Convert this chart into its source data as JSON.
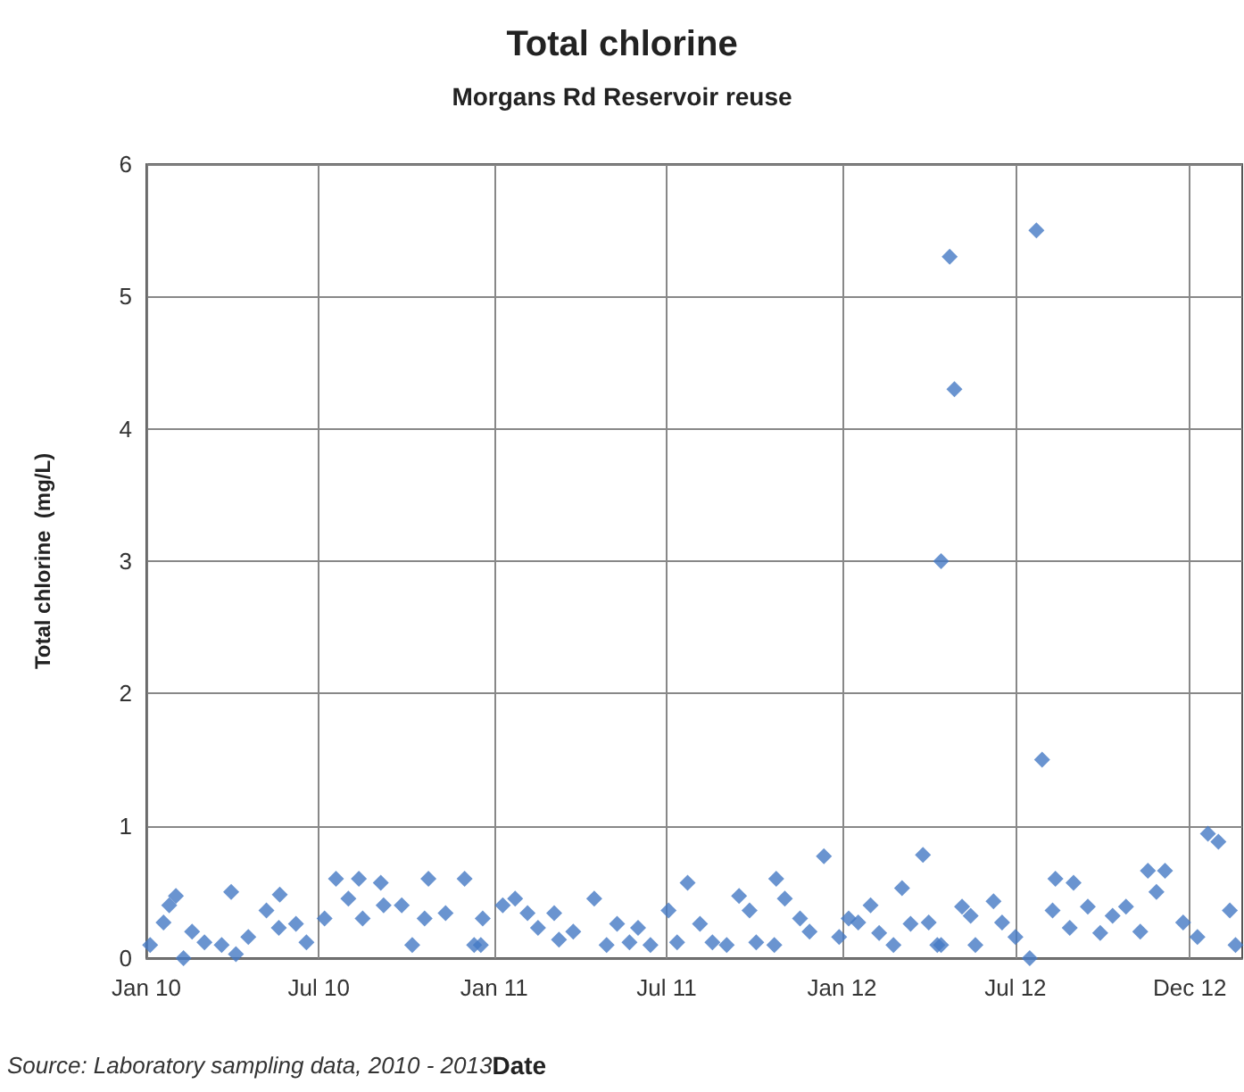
{
  "chart_data": {
    "type": "scatter",
    "title": "Total chlorine",
    "subtitle": "Morgans Rd Reservoir reuse",
    "xlabel": "Date",
    "ylabel": "Total chlorine  (mg/L)",
    "annotations": [
      "Source: Laboratory sampling data, 2010 - 2013"
    ],
    "x": [
      "2010-01-05",
      "2010-01-19",
      "2010-01-25",
      "2010-02-01",
      "2010-02-09",
      "2010-02-18",
      "2010-03-03",
      "2010-03-21",
      "2010-03-31",
      "2010-04-05",
      "2010-04-18",
      "2010-05-07",
      "2010-05-20",
      "2010-05-21",
      "2010-06-07",
      "2010-06-18",
      "2010-07-07",
      "2010-07-19",
      "2010-08-01",
      "2010-08-12",
      "2010-08-16",
      "2010-09-04",
      "2010-09-07",
      "2010-09-26",
      "2010-10-07",
      "2010-10-20",
      "2010-10-24",
      "2010-11-11",
      "2010-12-01",
      "2010-12-11",
      "2010-12-18",
      "2010-12-20",
      "2011-01-10",
      "2011-01-23",
      "2011-02-05",
      "2011-02-16",
      "2011-03-05",
      "2011-03-10",
      "2011-03-25",
      "2011-04-16",
      "2011-04-29",
      "2011-05-10",
      "2011-05-23",
      "2011-06-01",
      "2011-06-14",
      "2011-07-03",
      "2011-07-12",
      "2011-07-23",
      "2011-08-05",
      "2011-08-18",
      "2011-09-02",
      "2011-09-15",
      "2011-09-26",
      "2011-10-03",
      "2011-10-22",
      "2011-10-24",
      "2011-11-02",
      "2011-11-18",
      "2011-11-28",
      "2011-12-13",
      "2011-12-29",
      "2012-01-08",
      "2012-01-18",
      "2012-01-31",
      "2012-02-09",
      "2012-02-24",
      "2012-03-04",
      "2012-03-13",
      "2012-03-26",
      "2012-04-01",
      "2012-04-10",
      "2012-04-14",
      "2012-04-23",
      "2012-04-28",
      "2012-04-14",
      "2012-05-06",
      "2012-05-15",
      "2012-05-20",
      "2012-06-08",
      "2012-06-17",
      "2012-07-01",
      "2012-07-16",
      "2012-07-23",
      "2012-07-29",
      "2012-08-09",
      "2012-08-12",
      "2012-08-27",
      "2012-08-31",
      "2012-09-15",
      "2012-09-28",
      "2012-10-11",
      "2012-10-25",
      "2012-11-09",
      "2012-11-17",
      "2012-11-26",
      "2012-12-05",
      "2012-12-24",
      "2013-01-08",
      "2013-01-19",
      "2013-01-30",
      "2013-02-11",
      "2013-02-17"
    ],
    "values": [
      0.1,
      0.27,
      0.4,
      0.47,
      0.0,
      0.2,
      0.12,
      0.1,
      0.5,
      0.03,
      0.16,
      0.36,
      0.23,
      0.48,
      0.26,
      0.12,
      0.3,
      0.6,
      0.45,
      0.6,
      0.3,
      0.57,
      0.4,
      0.4,
      0.1,
      0.3,
      0.6,
      0.34,
      0.6,
      0.1,
      0.1,
      0.3,
      0.4,
      0.45,
      0.34,
      0.23,
      0.34,
      0.14,
      0.2,
      0.45,
      0.1,
      0.26,
      0.12,
      0.23,
      0.1,
      0.36,
      0.12,
      0.57,
      0.26,
      0.12,
      0.1,
      0.47,
      0.36,
      0.12,
      0.1,
      0.6,
      0.45,
      0.3,
      0.2,
      0.77,
      0.16,
      0.3,
      0.27,
      0.4,
      0.19,
      0.1,
      0.53,
      0.26,
      0.78,
      0.27,
      0.1,
      0.1,
      5.3,
      4.3,
      3.0,
      0.39,
      0.32,
      0.1,
      0.43,
      0.27,
      0.16,
      0.0,
      5.5,
      1.5,
      0.36,
      0.6,
      0.23,
      0.57,
      0.39,
      0.19,
      0.32,
      0.39,
      0.2,
      0.66,
      0.5,
      0.66,
      0.27,
      0.16,
      0.94,
      0.88,
      0.36,
      0.1
    ],
    "color": "#4579c4",
    "marker": "diamond",
    "grid": true,
    "xlim": [
      "2010-01-01",
      "2013-02-24"
    ],
    "xticks": [
      {
        "value": "2010-01-01",
        "label": "Jan 10"
      },
      {
        "value": "2010-07-01",
        "label": "Jul 10"
      },
      {
        "value": "2011-01-01",
        "label": "Jan 11"
      },
      {
        "value": "2011-07-01",
        "label": "Jul 11"
      },
      {
        "value": "2012-01-01",
        "label": "Jan 12"
      },
      {
        "value": "2012-07-01",
        "label": "Jul 12"
      },
      {
        "value": "2012-12-31",
        "label": "Dec 12"
      }
    ],
    "ylim": [
      0,
      6
    ],
    "yticks": [
      0,
      1,
      2,
      3,
      4,
      5,
      6
    ]
  }
}
